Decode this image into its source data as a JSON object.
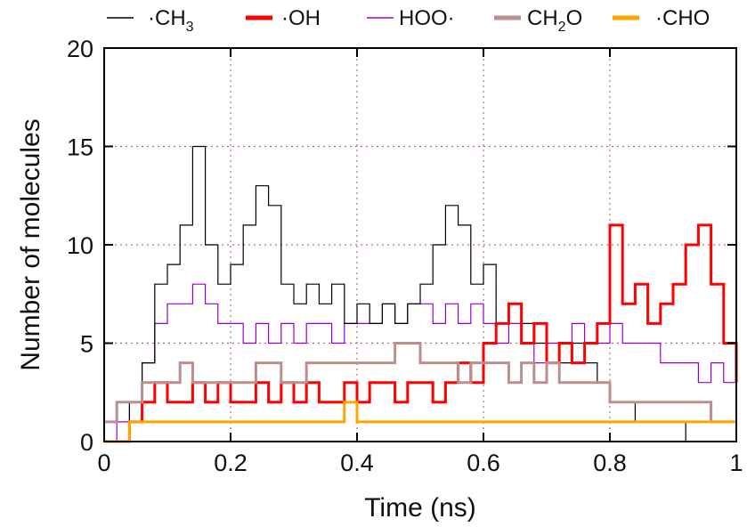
{
  "chart_data": {
    "type": "line",
    "xlabel": "Time (ns)",
    "ylabel": "Number of molecules",
    "xlim": [
      0,
      1
    ],
    "ylim": [
      0,
      20
    ],
    "x_ticks": [
      0,
      0.2,
      0.4,
      0.6,
      0.8,
      1
    ],
    "x_tick_labels": [
      "0",
      "0.2",
      "0.4",
      "0.6",
      "0.8",
      "1"
    ],
    "y_ticks": [
      0,
      5,
      10,
      15,
      20
    ],
    "y_tick_labels": [
      "0",
      "5",
      "10",
      "15",
      "20"
    ],
    "grid": "dotted",
    "legend_position": "top",
    "x": [
      0.0,
      0.02,
      0.04,
      0.06,
      0.08,
      0.1,
      0.12,
      0.14,
      0.16,
      0.18,
      0.2,
      0.22,
      0.24,
      0.26,
      0.28,
      0.3,
      0.32,
      0.34,
      0.36,
      0.38,
      0.4,
      0.42,
      0.44,
      0.46,
      0.48,
      0.5,
      0.52,
      0.54,
      0.56,
      0.58,
      0.6,
      0.62,
      0.64,
      0.66,
      0.68,
      0.7,
      0.72,
      0.74,
      0.76,
      0.78,
      0.8,
      0.82,
      0.84,
      0.86,
      0.88,
      0.9,
      0.92,
      0.94,
      0.96,
      0.98,
      1.0
    ],
    "series": [
      {
        "name": "·CH",
        "subscript": "3",
        "color": "#000000",
        "width": 1.2,
        "values": [
          0,
          0,
          2,
          4,
          8,
          9,
          11,
          15,
          10,
          8,
          9,
          11,
          13,
          12,
          8,
          7,
          8,
          7,
          8,
          6,
          7,
          6,
          7,
          6,
          7,
          8,
          10,
          12,
          11,
          8,
          9,
          6,
          7,
          6,
          5,
          4,
          4,
          5,
          4,
          3,
          2,
          2,
          1,
          1,
          1,
          1,
          0,
          0,
          0,
          0,
          0
        ]
      },
      {
        "name": "·OH",
        "subscript": "",
        "color": "#ff0000",
        "width": 3,
        "values": [
          0,
          0,
          1,
          2,
          3,
          2,
          2,
          3,
          2,
          3,
          2,
          2,
          3,
          2,
          3,
          2,
          3,
          2,
          2,
          3,
          2,
          3,
          3,
          2,
          3,
          3,
          2,
          3,
          4,
          3,
          5,
          6,
          7,
          5,
          6,
          4,
          5,
          4,
          5,
          6,
          11,
          7,
          8,
          6,
          7,
          8,
          10,
          11,
          8,
          5,
          3
        ]
      },
      {
        "name": "HOO·",
        "subscript": "",
        "color": "#9400d3",
        "width": 1.2,
        "values": [
          0,
          1,
          2,
          4,
          6,
          7,
          7,
          8,
          7,
          6,
          6,
          5,
          6,
          5,
          6,
          5,
          6,
          6,
          5,
          6,
          6,
          6,
          7,
          6,
          7,
          7,
          6,
          7,
          6,
          7,
          6,
          5,
          6,
          5,
          4,
          5,
          5,
          6,
          5,
          5,
          6,
          5,
          5,
          5,
          4,
          4,
          4,
          3,
          4,
          3,
          2
        ]
      },
      {
        "name": "CH",
        "subscript": "2",
        "tail": "O",
        "color": "#bc8f8f",
        "width": 3,
        "values": [
          1,
          2,
          2,
          3,
          3,
          3,
          4,
          3,
          3,
          3,
          3,
          3,
          4,
          4,
          3,
          3,
          4,
          4,
          4,
          4,
          4,
          4,
          4,
          5,
          5,
          4,
          4,
          4,
          3,
          4,
          4,
          4,
          3,
          4,
          3,
          4,
          3,
          3,
          3,
          3,
          2,
          2,
          2,
          2,
          2,
          2,
          2,
          2,
          1,
          1,
          1
        ]
      },
      {
        "name": "·CHO",
        "subscript": "",
        "color": "#ffa500",
        "width": 3,
        "values": [
          0,
          0,
          1,
          1,
          1,
          1,
          1,
          1,
          1,
          1,
          1,
          1,
          1,
          1,
          1,
          1,
          1,
          1,
          1,
          2,
          1,
          1,
          1,
          1,
          1,
          1,
          1,
          1,
          1,
          1,
          1,
          1,
          1,
          1,
          1,
          1,
          1,
          1,
          1,
          1,
          1,
          1,
          1,
          1,
          1,
          1,
          1,
          1,
          1,
          1,
          1
        ]
      }
    ]
  }
}
